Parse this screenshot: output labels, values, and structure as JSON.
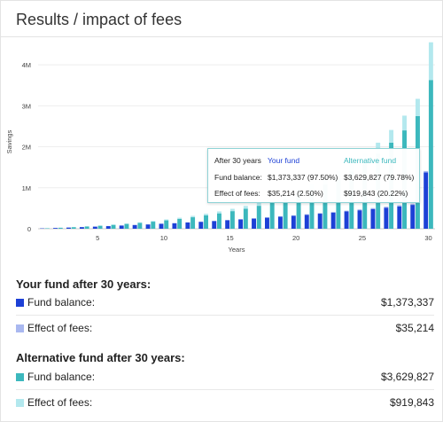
{
  "title": "Results / impact of fees",
  "colors": {
    "your_balance": "#1d40d6",
    "your_fees": "#a9b8f0",
    "alt_balance": "#3cb8bd",
    "alt_fees": "#b3e8ee"
  },
  "chart_data": {
    "type": "bar",
    "stacked": true,
    "xlabel": "Years",
    "ylabel": "Savings",
    "ylim": [
      0,
      4500000
    ],
    "yticks": [
      0,
      1000000,
      2000000,
      3000000,
      4000000
    ],
    "ytick_labels": [
      "0",
      "1M",
      "2M",
      "3M",
      "4M"
    ],
    "xtick_labels": [
      "5",
      "10",
      "15",
      "20",
      "25",
      "30"
    ],
    "xticks": [
      5,
      10,
      15,
      20,
      25,
      30
    ],
    "grid": true,
    "x": [
      1,
      2,
      3,
      4,
      5,
      6,
      7,
      8,
      9,
      10,
      11,
      12,
      13,
      14,
      15,
      16,
      17,
      18,
      19,
      20,
      21,
      22,
      23,
      24,
      25,
      26,
      27,
      28,
      29,
      30
    ],
    "series": [
      {
        "name": "Your fund - Fund balance",
        "group": "your",
        "values": [
          9000,
          19000,
          29000,
          40000,
          52000,
          64000,
          77000,
          91000,
          105000,
          120000,
          135000,
          152000,
          169000,
          187000,
          206000,
          226000,
          247000,
          269000,
          292000,
          316000,
          341000,
          367000,
          394000,
          422000,
          451000,
          482000,
          514000,
          547000,
          582000,
          1373337
        ]
      },
      {
        "name": "Your fund - Effect of fees",
        "group": "your",
        "values": [
          500,
          1000,
          1500,
          2000,
          2500,
          3000,
          3500,
          4000,
          4500,
          5000,
          5600,
          6200,
          6800,
          7500,
          8200,
          9000,
          10000,
          11000,
          12000,
          13000,
          14500,
          16000,
          17500,
          19000,
          21000,
          23000,
          25500,
          28000,
          31500,
          35214
        ]
      },
      {
        "name": "Alternative fund - Fund balance",
        "group": "alt",
        "values": [
          11000,
          24000,
          38000,
          54000,
          73000,
          94000,
          117000,
          143000,
          172000,
          204000,
          240000,
          280000,
          325000,
          375000,
          430000,
          490000,
          560000,
          640000,
          730000,
          830000,
          950000,
          1080000,
          1230000,
          1400000,
          1600000,
          1830000,
          2100000,
          2400000,
          2750000,
          3629827
        ]
      },
      {
        "name": "Alternative fund - Effect of fees",
        "group": "alt",
        "values": [
          1000,
          2000,
          3500,
          5000,
          7000,
          9500,
          12000,
          15500,
          19000,
          23500,
          28500,
          34000,
          40500,
          48000,
          56500,
          66000,
          77000,
          89500,
          103000,
          119000,
          137000,
          157000,
          180000,
          205000,
          235000,
          270000,
          310000,
          360000,
          420000,
          919843
        ]
      }
    ],
    "tooltip": {
      "header": "After 30 years",
      "col_your": "Your fund",
      "col_alt": "Alternative fund",
      "rows": [
        {
          "label": "Fund balance:",
          "your": "$1,373,337 (97.50%)",
          "alt": "$3,629,827 (79.78%)"
        },
        {
          "label": "Effect of fees:",
          "your": "$35,214 (2.50%)",
          "alt": "$919,843 (20.22%)"
        }
      ]
    }
  },
  "summary": {
    "your": {
      "title": "Your fund after 30 years:",
      "balance_label": "Fund balance:",
      "balance_value": "$1,373,337",
      "fees_label": "Effect of fees:",
      "fees_value": "$35,214"
    },
    "alt": {
      "title": "Alternative fund after 30 years:",
      "balance_label": "Fund balance:",
      "balance_value": "$3,629,827",
      "fees_label": "Effect of fees:",
      "fees_value": "$919,843"
    }
  }
}
